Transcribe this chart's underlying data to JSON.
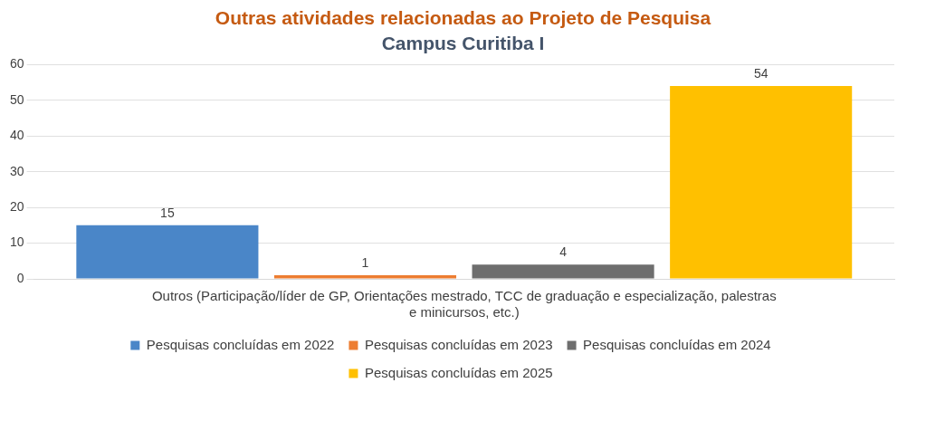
{
  "chart_data": {
    "type": "bar",
    "title": "Outras atividades relacionadas ao Projeto de Pesquisa",
    "subtitle": "Campus Curitiba I",
    "categories": [
      "Outros (Participação/líder de GP, Orientações mestrado, TCC de graduação e especialização, palestras e minicursos, etc.)"
    ],
    "series": [
      {
        "name": "Pesquisas concluídas em 2022",
        "color": "#4a86c8",
        "values": [
          15
        ]
      },
      {
        "name": "Pesquisas concluídas em 2023",
        "color": "#ed7d31",
        "values": [
          1
        ]
      },
      {
        "name": "Pesquisas concluídas em 2024",
        "color": "#6e6e6e",
        "values": [
          4
        ]
      },
      {
        "name": "Pesquisas concluídas em 2025",
        "color": "#ffc000",
        "values": [
          54
        ]
      }
    ],
    "ylim": [
      0,
      60
    ],
    "yticks": [
      0,
      10,
      20,
      30,
      40,
      50,
      60
    ],
    "grid": "y",
    "legend": "bottom",
    "data_labels": true
  }
}
